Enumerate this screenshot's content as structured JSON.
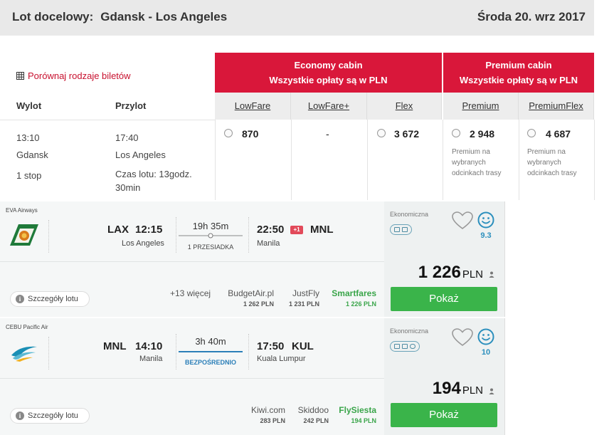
{
  "header": {
    "route_label": "Lot docelowy:",
    "route": "Gdansk - Los Angeles",
    "date": "Środa 20. wrz 2017"
  },
  "compare_link": "Porównaj rodzaje biletów",
  "columns": {
    "departure": "Wylot",
    "arrival": "Przylot"
  },
  "cabins": {
    "economy": {
      "title": "Economy cabin",
      "subtitle": "Wszystkie opłaty są w PLN"
    },
    "premium": {
      "title": "Premium cabin",
      "subtitle": "Wszystkie opłaty są w PLN"
    }
  },
  "fare_types": [
    "LowFare",
    "LowFare+",
    "Flex",
    "Premium",
    "PremiumFlex"
  ],
  "flight_row": {
    "dep_time": "13:10",
    "dep_city": "Gdansk",
    "stops": "1 stop",
    "arr_time": "17:40",
    "arr_city": "Los Angeles",
    "duration_line1": "Czas lotu: 13godz.",
    "duration_line2": "30min",
    "prices": [
      "870",
      "-",
      "3 672",
      "2 948",
      "4 687"
    ],
    "premium_note": [
      "Premium na",
      "wybranych",
      "odcinkach trasy"
    ]
  },
  "results": [
    {
      "airline": "EVA Airways",
      "from_code": "LAX",
      "dep_time": "12:15",
      "from_city": "Los Angeles",
      "duration": "19h 35m",
      "stops": "1 PRZESIADKA",
      "arr_time": "22:50",
      "day_offset": "+1",
      "to_code": "MNL",
      "to_city": "Manila",
      "details": "Szczegóły lotu",
      "more": "+13 więcej",
      "providers": [
        {
          "name": "BudgetAir.pl",
          "price": "1 262 PLN"
        },
        {
          "name": "JustFly",
          "price": "1 231 PLN"
        },
        {
          "name": "Smartfares",
          "price": "1 226 PLN"
        }
      ],
      "cabin": "Ekonomiczna",
      "score": "9.3",
      "price": "1 226",
      "currency": "PLN",
      "button": "Pokaż"
    },
    {
      "airline": "CEBU Pacific Air",
      "from_code": "MNL",
      "dep_time": "14:10",
      "from_city": "Manila",
      "duration": "3h 40m",
      "stops": "BEZPOŚREDNIO",
      "arr_time": "17:50",
      "to_code": "KUL",
      "to_city": "Kuala Lumpur",
      "details": "Szczegóły lotu",
      "providers": [
        {
          "name": "Kiwi.com",
          "price": "283 PLN"
        },
        {
          "name": "Skiddoo",
          "price": "242 PLN"
        },
        {
          "name": "FlySiesta",
          "price": "194 PLN"
        }
      ],
      "cabin": "Ekonomiczna",
      "score": "10",
      "price": "194",
      "currency": "PLN",
      "button": "Pokaż"
    }
  ],
  "colors": {
    "accent_red": "#d9173a",
    "best_green": "#3aa54a",
    "button_green": "#3ab44a",
    "score_blue": "#2b8fbd"
  }
}
